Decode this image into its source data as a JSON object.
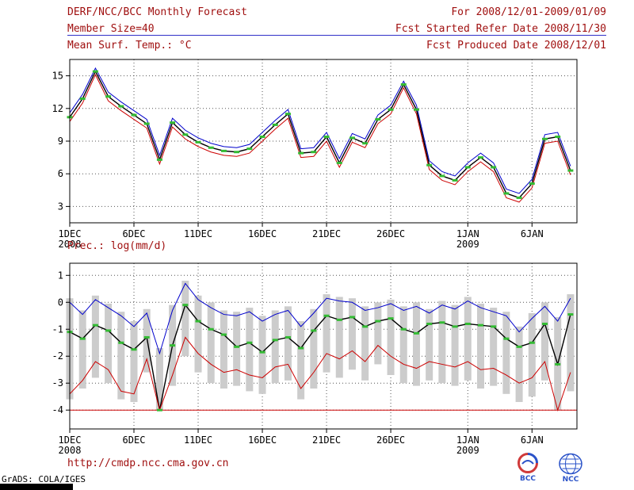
{
  "colors": {
    "header_text": "#a01010",
    "rule_blue": "#3030c8",
    "marker_green": "#33bb33",
    "bar_gray": "#cccccc",
    "line_blue": "#0000cc",
    "line_red": "#cc0000",
    "line_black": "#000000",
    "floor_red": "#cc0000",
    "logo_red": "#d03a3a",
    "logo_blue": "#2a52c8"
  },
  "header": {
    "title": "DERF/NCC/BCC Monthly Forecast",
    "member_size": "Member Size=40",
    "variable_label": "Mean Surf. Temp.: °C",
    "for_range": "For 2008/12/01-2009/01/09",
    "refer_date": "Fcst Started Refer Date 2008/11/30",
    "produced_date": "Fcst Produced Date 2008/12/01"
  },
  "footer": {
    "url": "http://cmdp.ncc.cma.gov.cn",
    "grads_credit": "GrADS: COLA/IGES",
    "bcc_label": "BCC",
    "ncc_label": "NCC"
  },
  "chart_data": [
    {
      "type": "line",
      "title": "Mean Surf. Temp.: °C",
      "ylabel": "°C",
      "xlabel": "",
      "n_days": 40,
      "x_unit": "forecast day (1 = 2008-12-01, 40 = 2009-01-09)",
      "xlim": [
        1,
        40.5
      ],
      "ylim": [
        1.5,
        16.5
      ],
      "yticks": [
        3,
        6,
        9,
        12,
        15
      ],
      "x_ticks": [
        {
          "day": 1,
          "label": "1DEC",
          "sublabel": "2008"
        },
        {
          "day": 6,
          "label": "6DEC"
        },
        {
          "day": 11,
          "label": "11DEC"
        },
        {
          "day": 16,
          "label": "16DEC"
        },
        {
          "day": 21,
          "label": "21DEC"
        },
        {
          "day": 26,
          "label": "26DEC"
        },
        {
          "day": 32,
          "label": "1JAN",
          "sublabel": "2009"
        },
        {
          "day": 37,
          "label": "6JAN"
        }
      ],
      "series": [
        {
          "name": "ensemble max",
          "color": "#0000cc",
          "width": 1,
          "values": [
            11.6,
            13.3,
            15.7,
            13.5,
            12.6,
            11.8,
            11.0,
            7.7,
            11.1,
            10.0,
            9.3,
            8.8,
            8.5,
            8.4,
            8.7,
            9.8,
            10.9,
            11.9,
            8.3,
            8.4,
            9.8,
            7.4,
            9.7,
            9.2,
            11.4,
            12.3,
            14.5,
            12.3,
            7.2,
            6.2,
            5.8,
            7.0,
            7.9,
            7.0,
            4.6,
            4.2,
            5.5,
            9.6,
            9.8,
            6.7
          ]
        },
        {
          "name": "ensemble mean",
          "color": "#000000",
          "width": 1.4,
          "values": [
            11.2,
            12.9,
            15.4,
            13.1,
            12.2,
            11.4,
            10.6,
            7.3,
            10.7,
            9.6,
            8.9,
            8.4,
            8.1,
            8.0,
            8.3,
            9.4,
            10.5,
            11.5,
            7.9,
            8.0,
            9.4,
            7.0,
            9.3,
            8.8,
            11.0,
            11.9,
            14.2,
            11.9,
            6.8,
            5.8,
            5.4,
            6.6,
            7.5,
            6.6,
            4.2,
            3.8,
            5.1,
            9.2,
            9.4,
            6.3
          ]
        },
        {
          "name": "ensemble min",
          "color": "#cc0000",
          "width": 1,
          "values": [
            10.8,
            12.5,
            15.1,
            12.7,
            11.8,
            11.0,
            10.2,
            6.9,
            10.3,
            9.2,
            8.5,
            8.0,
            7.7,
            7.6,
            7.9,
            9.0,
            10.1,
            11.1,
            7.5,
            7.6,
            9.0,
            6.6,
            8.9,
            8.4,
            10.6,
            11.5,
            13.9,
            11.5,
            6.4,
            5.4,
            5.0,
            6.2,
            7.1,
            6.2,
            3.8,
            3.4,
            4.7,
            8.8,
            9.0,
            5.9
          ]
        }
      ],
      "marker_color": "#33bb33",
      "marker_values": [
        11.2,
        12.9,
        15.4,
        13.1,
        12.2,
        11.4,
        10.6,
        7.3,
        10.7,
        9.6,
        8.9,
        8.4,
        8.1,
        8.0,
        8.3,
        9.4,
        10.5,
        11.5,
        7.9,
        8.0,
        9.4,
        7.0,
        9.3,
        8.8,
        11.0,
        11.9,
        14.2,
        11.9,
        6.8,
        5.8,
        5.4,
        6.6,
        7.5,
        6.6,
        4.2,
        3.8,
        5.1,
        9.2,
        9.4,
        6.3
      ]
    },
    {
      "type": "line",
      "title": "Prec.: log(mm/d)",
      "ylabel": "log(mm/d)",
      "xlabel": "",
      "n_days": 40,
      "x_unit": "forecast day (1 = 2008-12-01, 40 = 2009-01-09)",
      "xlim": [
        1,
        40.5
      ],
      "ylim": [
        -4.7,
        1.45
      ],
      "yticks": [
        1,
        0,
        -1,
        -2,
        -3,
        -4
      ],
      "x_ticks": [
        {
          "day": 1,
          "label": "1DEC",
          "sublabel": "2008"
        },
        {
          "day": 6,
          "label": "6DEC"
        },
        {
          "day": 11,
          "label": "11DEC"
        },
        {
          "day": 16,
          "label": "16DEC"
        },
        {
          "day": 21,
          "label": "21DEC"
        },
        {
          "day": 26,
          "label": "26DEC"
        },
        {
          "day": 32,
          "label": "1JAN",
          "sublabel": "2009"
        },
        {
          "day": 37,
          "label": "6JAN"
        }
      ],
      "bars": {
        "name": "ensemble spread",
        "color": "#cccccc",
        "top": [
          0.15,
          -0.3,
          0.25,
          -0.05,
          -0.35,
          -0.7,
          -0.25,
          -1.7,
          -0.1,
          0.8,
          0.25,
          0.0,
          -0.3,
          -0.35,
          -0.2,
          -0.5,
          -0.3,
          -0.15,
          -0.7,
          -0.25,
          0.3,
          0.2,
          0.15,
          -0.15,
          0.0,
          0.1,
          -0.15,
          0.0,
          -0.25,
          0.05,
          -0.1,
          0.2,
          -0.05,
          -0.2,
          -0.35,
          -0.9,
          -0.4,
          0.0,
          -0.55,
          0.3
        ],
        "bottom": [
          -3.6,
          -3.2,
          -2.8,
          -3.0,
          -3.6,
          -3.7,
          -2.6,
          -4.0,
          -3.1,
          -2.0,
          -2.6,
          -3.0,
          -3.2,
          -3.1,
          -3.3,
          -3.4,
          -3.0,
          -2.9,
          -3.6,
          -3.2,
          -2.6,
          -2.8,
          -2.5,
          -2.9,
          -2.3,
          -2.7,
          -3.0,
          -3.1,
          -2.9,
          -3.0,
          -3.1,
          -2.9,
          -3.2,
          -3.1,
          -3.4,
          -3.7,
          -3.5,
          -2.9,
          -4.0,
          -3.3
        ]
      },
      "floor": {
        "value": -4,
        "color": "#cc0000"
      },
      "series": [
        {
          "name": "ensemble max",
          "color": "#0000cc",
          "width": 1,
          "values": [
            0.0,
            -0.45,
            0.1,
            -0.2,
            -0.5,
            -0.9,
            -0.4,
            -1.9,
            -0.3,
            0.7,
            0.1,
            -0.2,
            -0.45,
            -0.5,
            -0.35,
            -0.7,
            -0.45,
            -0.3,
            -0.9,
            -0.4,
            0.15,
            0.05,
            0.0,
            -0.3,
            -0.2,
            -0.05,
            -0.3,
            -0.15,
            -0.4,
            -0.1,
            -0.25,
            0.05,
            -0.2,
            -0.35,
            -0.5,
            -1.1,
            -0.6,
            -0.15,
            -0.7,
            0.15
          ]
        },
        {
          "name": "ensemble mean",
          "color": "#000000",
          "width": 1.4,
          "values": [
            -1.1,
            -1.35,
            -0.85,
            -1.05,
            -1.5,
            -1.75,
            -1.3,
            -4.0,
            -1.6,
            -0.1,
            -0.7,
            -1.0,
            -1.2,
            -1.65,
            -1.5,
            -1.85,
            -1.4,
            -1.3,
            -1.7,
            -1.05,
            -0.5,
            -0.65,
            -0.55,
            -0.9,
            -0.7,
            -0.6,
            -1.0,
            -1.15,
            -0.8,
            -0.75,
            -0.9,
            -0.8,
            -0.85,
            -0.9,
            -1.35,
            -1.65,
            -1.5,
            -0.8,
            -2.3,
            -0.45
          ]
        },
        {
          "name": "ensemble min",
          "color": "#cc0000",
          "width": 1,
          "values": [
            -3.4,
            -2.9,
            -2.2,
            -2.5,
            -3.3,
            -3.4,
            -2.1,
            -4.0,
            -2.7,
            -1.3,
            -1.9,
            -2.3,
            -2.6,
            -2.5,
            -2.7,
            -2.8,
            -2.4,
            -2.3,
            -3.2,
            -2.6,
            -1.9,
            -2.1,
            -1.8,
            -2.2,
            -1.6,
            -2.0,
            -2.3,
            -2.45,
            -2.2,
            -2.3,
            -2.4,
            -2.2,
            -2.5,
            -2.45,
            -2.7,
            -3.0,
            -2.8,
            -2.2,
            -4.0,
            -2.6
          ]
        }
      ],
      "marker_color": "#33bb33",
      "marker_values": [
        -1.1,
        -1.35,
        -0.85,
        -1.05,
        -1.5,
        -1.75,
        -1.3,
        -4.0,
        -1.6,
        -0.1,
        -0.7,
        -1.0,
        -1.2,
        -1.65,
        -1.5,
        -1.85,
        -1.4,
        -1.3,
        -1.7,
        -1.05,
        -0.5,
        -0.65,
        -0.55,
        -0.9,
        -0.7,
        -0.6,
        -1.0,
        -1.15,
        -0.8,
        -0.75,
        -0.9,
        -0.8,
        -0.85,
        -0.9,
        -1.35,
        -1.65,
        -1.5,
        -0.8,
        -2.3,
        -0.45
      ]
    }
  ]
}
